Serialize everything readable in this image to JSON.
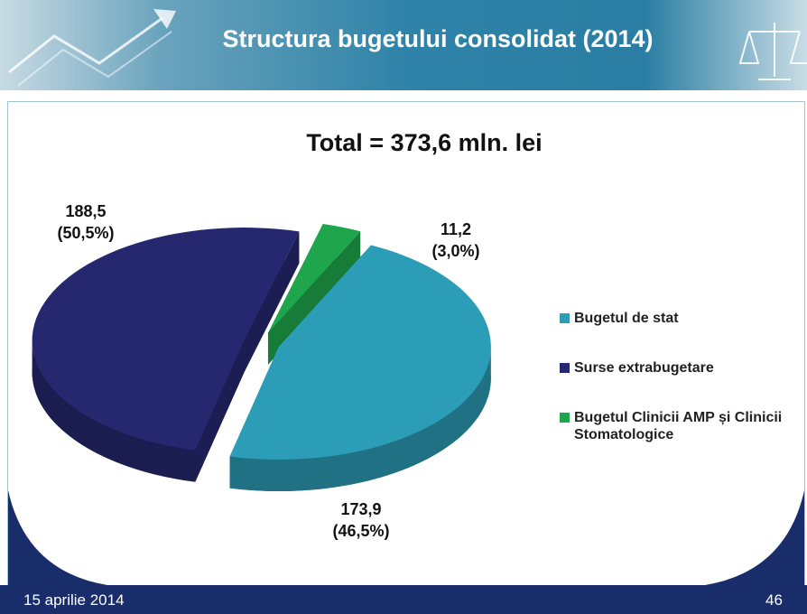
{
  "slide": {
    "title": "Structura bugetului consolidat (2014)",
    "date": "15 aprilie 2014",
    "page": "46"
  },
  "chart_data": {
    "type": "pie",
    "title": "Total = 373,6 mln. lei",
    "categories": [
      "Bugetul de stat",
      "Surse extrabugetare",
      "Bugetul Clinicii AMP și Clinicii Stomatologice"
    ],
    "values": [
      173.9,
      188.5,
      11.2
    ],
    "value_labels": [
      "173,9",
      "188,5",
      "11,2"
    ],
    "percent_labels": [
      "(46,5%)",
      "(50,5%)",
      "(3,0%)"
    ],
    "colors": [
      "#2b9db6",
      "#25276f",
      "#1fa54b"
    ],
    "legend": "right"
  }
}
